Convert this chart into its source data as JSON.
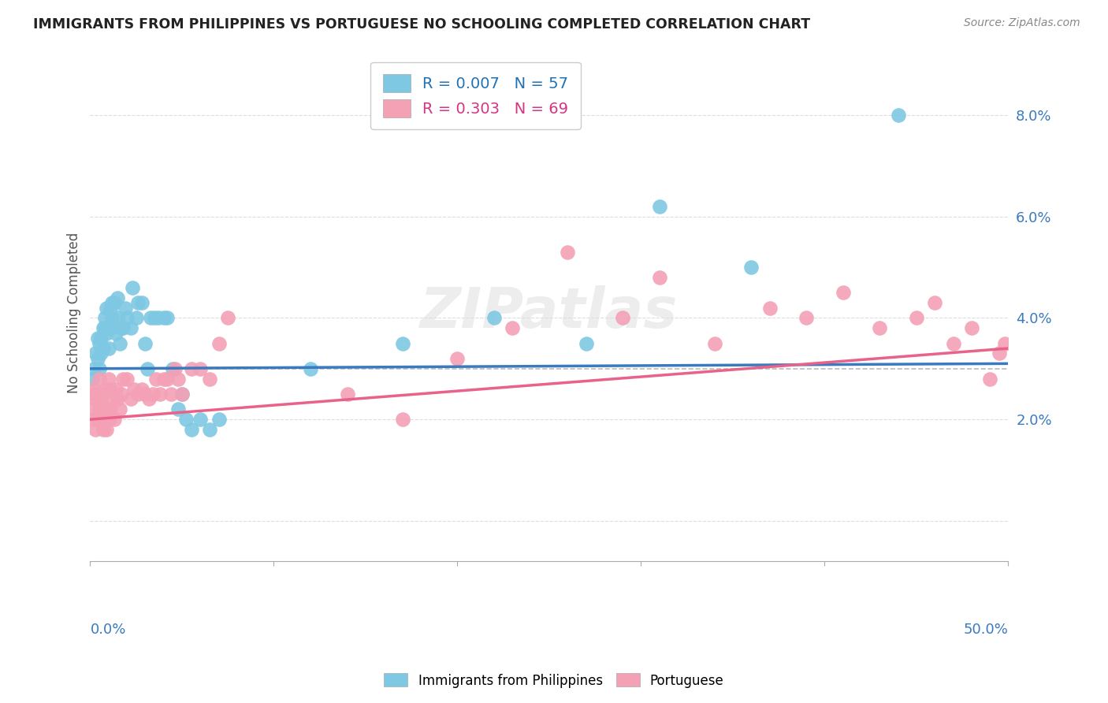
{
  "title": "IMMIGRANTS FROM PHILIPPINES VS PORTUGUESE NO SCHOOLING COMPLETED CORRELATION CHART",
  "source": "Source: ZipAtlas.com",
  "ylabel": "No Schooling Completed",
  "yticks": [
    0.0,
    0.02,
    0.04,
    0.06,
    0.08
  ],
  "ytick_labels": [
    "",
    "2.0%",
    "4.0%",
    "6.0%",
    "8.0%"
  ],
  "xlim": [
    0.0,
    0.5
  ],
  "ylim": [
    -0.008,
    0.09
  ],
  "legend_r1": "R = 0.007",
  "legend_n1": "N = 57",
  "legend_r2": "R = 0.303",
  "legend_n2": "N = 69",
  "color_blue": "#7ec8e3",
  "color_pink": "#f4a0b5",
  "color_blue_line": "#3a7abf",
  "color_pink_line": "#e8628a",
  "color_blue_text": "#2171b5",
  "color_pink_text": "#d63384",
  "title_color": "#222222",
  "axis_color": "#3a7abf",
  "grid_color": "#dddddd",
  "blue_points_x": [
    0.001,
    0.002,
    0.003,
    0.004,
    0.004,
    0.005,
    0.005,
    0.006,
    0.006,
    0.007,
    0.007,
    0.008,
    0.008,
    0.009,
    0.009,
    0.01,
    0.01,
    0.011,
    0.011,
    0.012,
    0.012,
    0.013,
    0.014,
    0.015,
    0.015,
    0.016,
    0.017,
    0.018,
    0.019,
    0.02,
    0.022,
    0.023,
    0.025,
    0.026,
    0.028,
    0.03,
    0.031,
    0.033,
    0.035,
    0.037,
    0.04,
    0.042,
    0.045,
    0.048,
    0.05,
    0.052,
    0.055,
    0.06,
    0.065,
    0.07,
    0.12,
    0.17,
    0.22,
    0.27,
    0.31,
    0.36,
    0.44
  ],
  "blue_points_y": [
    0.028,
    0.03,
    0.033,
    0.032,
    0.036,
    0.035,
    0.03,
    0.036,
    0.033,
    0.038,
    0.034,
    0.04,
    0.038,
    0.037,
    0.042,
    0.034,
    0.038,
    0.042,
    0.038,
    0.04,
    0.043,
    0.043,
    0.037,
    0.044,
    0.04,
    0.035,
    0.038,
    0.038,
    0.042,
    0.04,
    0.038,
    0.046,
    0.04,
    0.043,
    0.043,
    0.035,
    0.03,
    0.04,
    0.04,
    0.04,
    0.04,
    0.04,
    0.03,
    0.022,
    0.025,
    0.02,
    0.018,
    0.02,
    0.018,
    0.02,
    0.03,
    0.035,
    0.04,
    0.035,
    0.062,
    0.05,
    0.08
  ],
  "pink_points_x": [
    0.001,
    0.001,
    0.002,
    0.002,
    0.003,
    0.003,
    0.004,
    0.004,
    0.005,
    0.005,
    0.006,
    0.006,
    0.007,
    0.007,
    0.008,
    0.008,
    0.009,
    0.009,
    0.01,
    0.01,
    0.011,
    0.011,
    0.012,
    0.013,
    0.014,
    0.015,
    0.016,
    0.017,
    0.018,
    0.02,
    0.022,
    0.024,
    0.026,
    0.028,
    0.03,
    0.032,
    0.034,
    0.036,
    0.038,
    0.04,
    0.042,
    0.044,
    0.046,
    0.048,
    0.05,
    0.055,
    0.06,
    0.065,
    0.07,
    0.075,
    0.14,
    0.17,
    0.2,
    0.23,
    0.26,
    0.29,
    0.31,
    0.34,
    0.37,
    0.39,
    0.41,
    0.43,
    0.45,
    0.46,
    0.47,
    0.48,
    0.49,
    0.495,
    0.498
  ],
  "pink_points_y": [
    0.022,
    0.026,
    0.02,
    0.025,
    0.018,
    0.024,
    0.02,
    0.025,
    0.022,
    0.028,
    0.02,
    0.024,
    0.018,
    0.025,
    0.022,
    0.026,
    0.018,
    0.022,
    0.02,
    0.028,
    0.022,
    0.026,
    0.024,
    0.02,
    0.026,
    0.024,
    0.022,
    0.025,
    0.028,
    0.028,
    0.024,
    0.026,
    0.025,
    0.026,
    0.025,
    0.024,
    0.025,
    0.028,
    0.025,
    0.028,
    0.028,
    0.025,
    0.03,
    0.028,
    0.025,
    0.03,
    0.03,
    0.028,
    0.035,
    0.04,
    0.025,
    0.02,
    0.032,
    0.038,
    0.053,
    0.04,
    0.048,
    0.035,
    0.042,
    0.04,
    0.045,
    0.038,
    0.04,
    0.043,
    0.035,
    0.038,
    0.028,
    0.033,
    0.035
  ],
  "blue_line_x": [
    0.0,
    0.5
  ],
  "blue_line_y": [
    0.03,
    0.031
  ],
  "pink_line_x": [
    0.0,
    0.5
  ],
  "pink_line_y": [
    0.02,
    0.034
  ]
}
